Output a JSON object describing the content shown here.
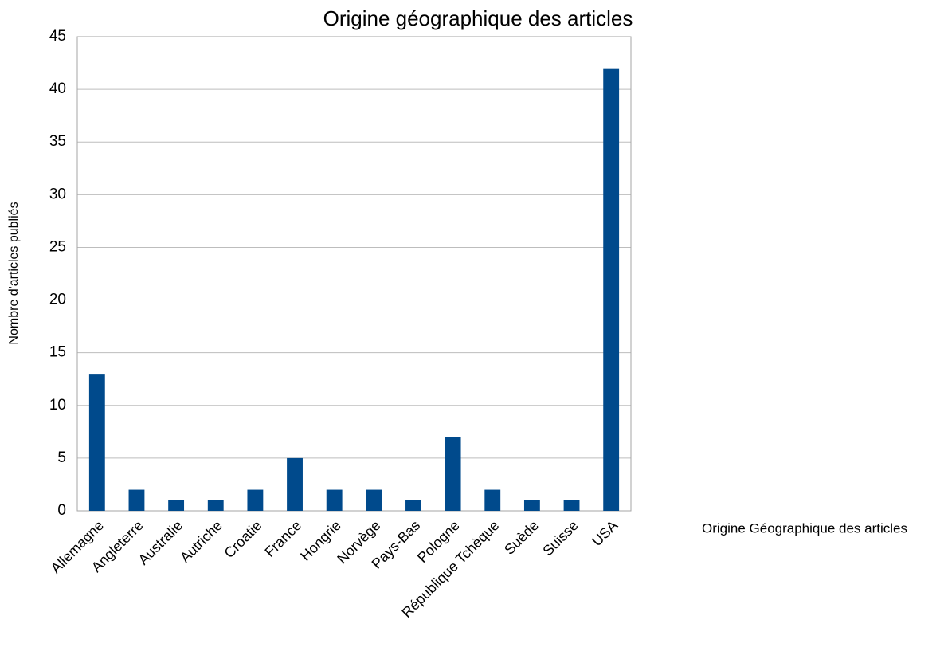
{
  "chart_data": {
    "type": "bar",
    "title": "Origine géographique des articles",
    "x_label": "Origine Géographique des articles",
    "y_label": "Nombre d'articles publiés",
    "categories": [
      "Allemagne",
      "Angleterre",
      "Australie",
      "Autriche",
      "Croatie",
      "France",
      "Hongrie",
      "Norvège",
      "Pays-Bas",
      "Pologne",
      "République Tchèque",
      "Suède",
      "Suisse",
      "USA"
    ],
    "values": [
      13,
      2,
      1,
      1,
      2,
      5,
      2,
      2,
      1,
      7,
      2,
      1,
      1,
      42
    ],
    "color": "#004a8c",
    "ylim": [
      0,
      45
    ],
    "yticks": [
      0,
      5,
      10,
      15,
      20,
      25,
      30,
      35,
      40,
      45
    ],
    "grid": true
  }
}
